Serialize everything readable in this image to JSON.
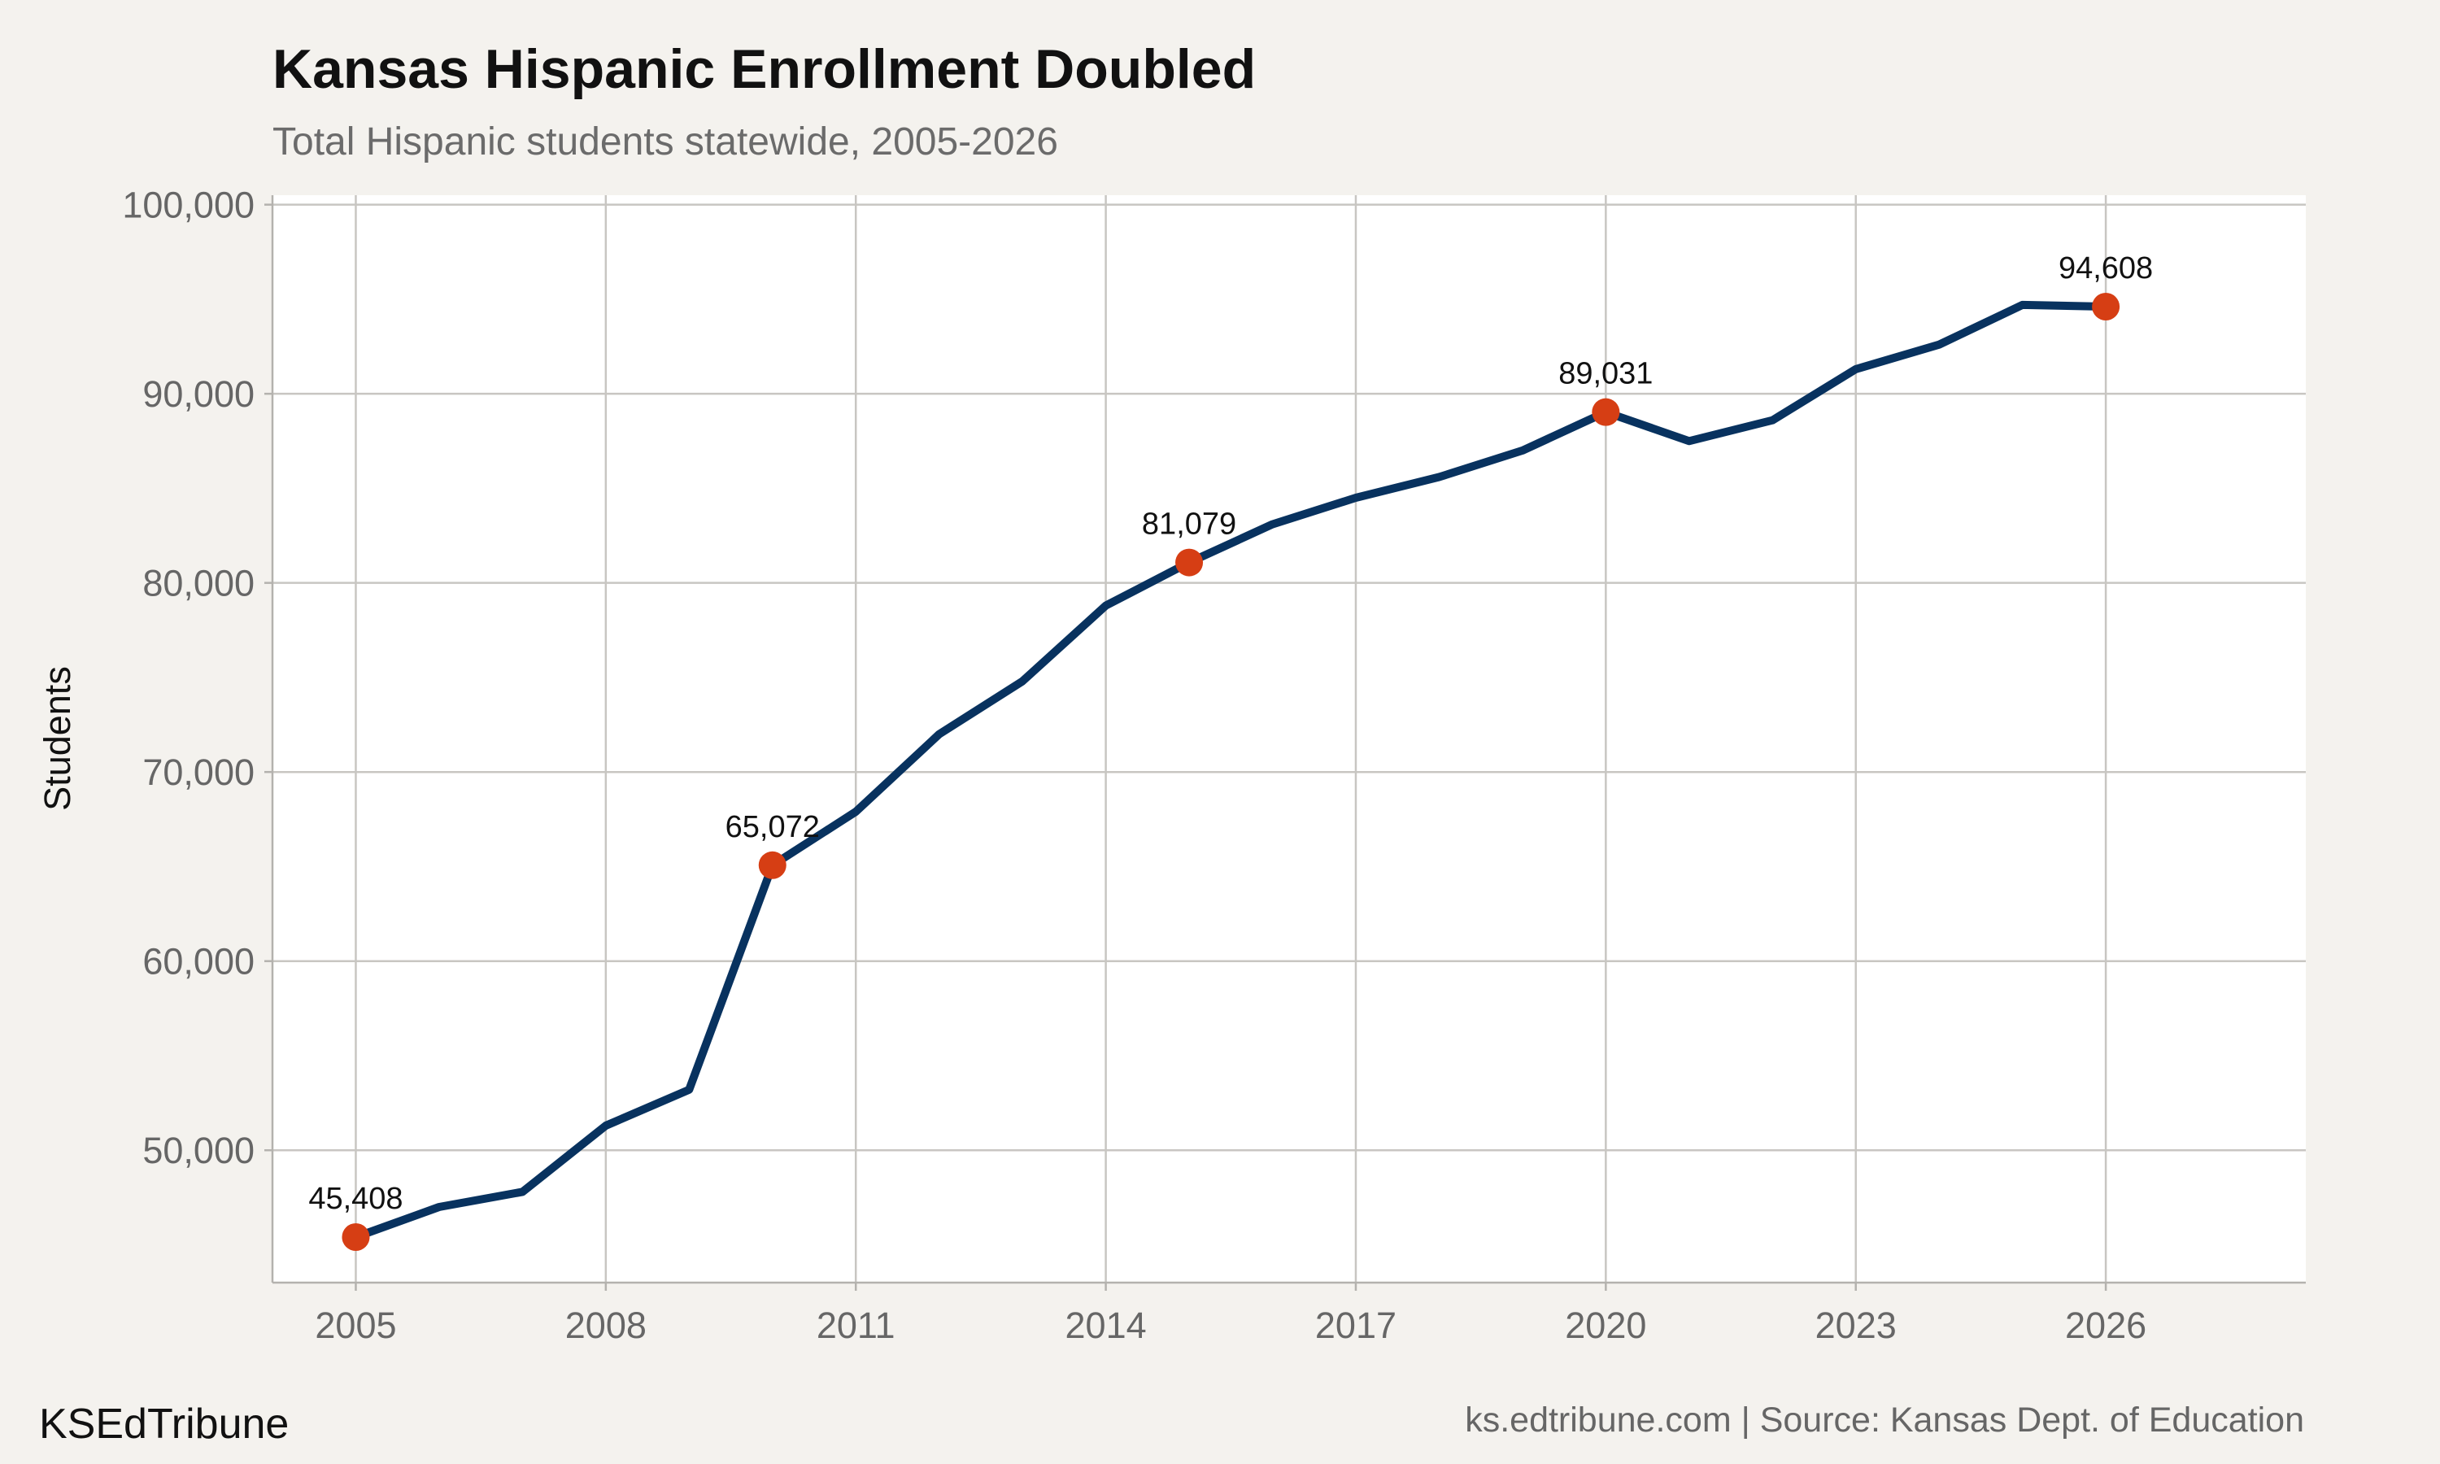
{
  "chart_data": {
    "type": "line",
    "title": "Kansas Hispanic Enrollment Doubled",
    "subtitle": "Total Hispanic students statewide, 2005-2026",
    "xlabel": "",
    "ylabel": "Students",
    "xlim": [
      2004,
      2028.4
    ],
    "ylim": [
      43000,
      100500
    ],
    "x_ticks": [
      2005,
      2008,
      2011,
      2014,
      2017,
      2020,
      2023,
      2026
    ],
    "x_tick_labels": [
      "2005",
      "2008",
      "2011",
      "2014",
      "2017",
      "2020",
      "2023",
      "2026"
    ],
    "y_ticks": [
      50000,
      60000,
      70000,
      80000,
      90000,
      100000
    ],
    "y_tick_labels": [
      "50,000",
      "60,000",
      "70,000",
      "80,000",
      "90,000",
      "100,000"
    ],
    "grid": true,
    "legend": "none",
    "series": [
      {
        "color": "#08325f",
        "x": [
          2005,
          2006,
          2007,
          2008,
          2009,
          2010,
          2011,
          2012,
          2013,
          2014,
          2015,
          2016,
          2017,
          2018,
          2019,
          2020,
          2021,
          2022,
          2023,
          2024,
          2025,
          2026
        ],
        "y": [
          45408,
          47000,
          47800,
          51300,
          53200,
          65072,
          67900,
          72000,
          74800,
          78800,
          81079,
          83100,
          84500,
          85600,
          87000,
          89031,
          87500,
          88600,
          91300,
          92600,
          94700,
          94608
        ]
      }
    ],
    "highlighted_points": {
      "color": "#d63e14",
      "points": [
        {
          "x": 2005,
          "y": 45408,
          "label": "45,408"
        },
        {
          "x": 2010,
          "y": 65072,
          "label": "65,072"
        },
        {
          "x": 2015,
          "y": 81079,
          "label": "81,079"
        },
        {
          "x": 2020,
          "y": 89031,
          "label": "89,031"
        },
        {
          "x": 2026,
          "y": 94608,
          "label": "94,608"
        }
      ]
    },
    "panel_background": "#ffffff",
    "page_background": "#f4f2ee"
  },
  "footer": {
    "brand": "KSEdTribune",
    "source": "ks.edtribune.com | Source: Kansas Dept. of Education"
  }
}
